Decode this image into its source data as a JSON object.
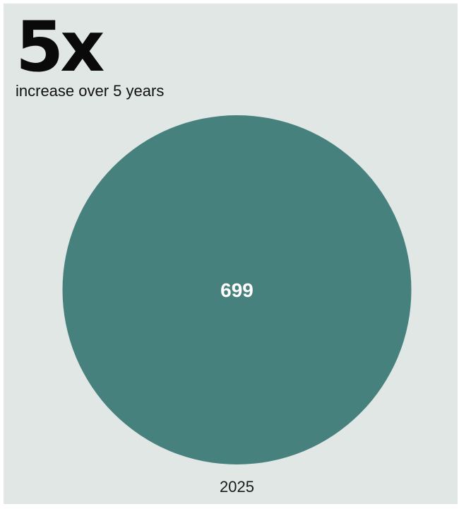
{
  "headline": {
    "value": "5x",
    "caption": "increase over 5 years"
  },
  "chart_data": {
    "type": "bubble",
    "title": "",
    "xlabel": "",
    "ylabel": "",
    "categories": [
      "2025"
    ],
    "values": [
      699
    ],
    "data_labels": [
      "699"
    ],
    "colors": {
      "bubble": "#47817d",
      "bubble_label": "#ffffff",
      "category_label": "#1a1a1a",
      "background": "#e1e7e5"
    },
    "legend": "none",
    "grid": false
  }
}
